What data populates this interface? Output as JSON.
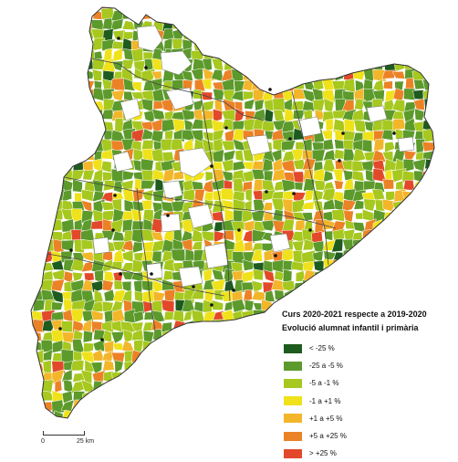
{
  "map": {
    "title": "Curs 2020-2021 respecte a 2019-2020",
    "legend_title": "Evolució alumnat infantil i primària",
    "legend": [
      {
        "label": "< -25 %",
        "color": "#1e5b1e"
      },
      {
        "label": "-25 a -5 %",
        "color": "#5c9a2c"
      },
      {
        "label": "-5 a -1 %",
        "color": "#a6c81f"
      },
      {
        "label": "-1 a +1 %",
        "color": "#f0e21a"
      },
      {
        "label": "+1 a +5 %",
        "color": "#f3b62a"
      },
      {
        "label": "+5 a +25 %",
        "color": "#ec8226"
      },
      {
        "label": "> +25 %",
        "color": "#e2492a"
      }
    ],
    "no_data_color": "#ffffff",
    "scalebar": {
      "start_label": "0",
      "end_label": "25 km"
    }
  }
}
